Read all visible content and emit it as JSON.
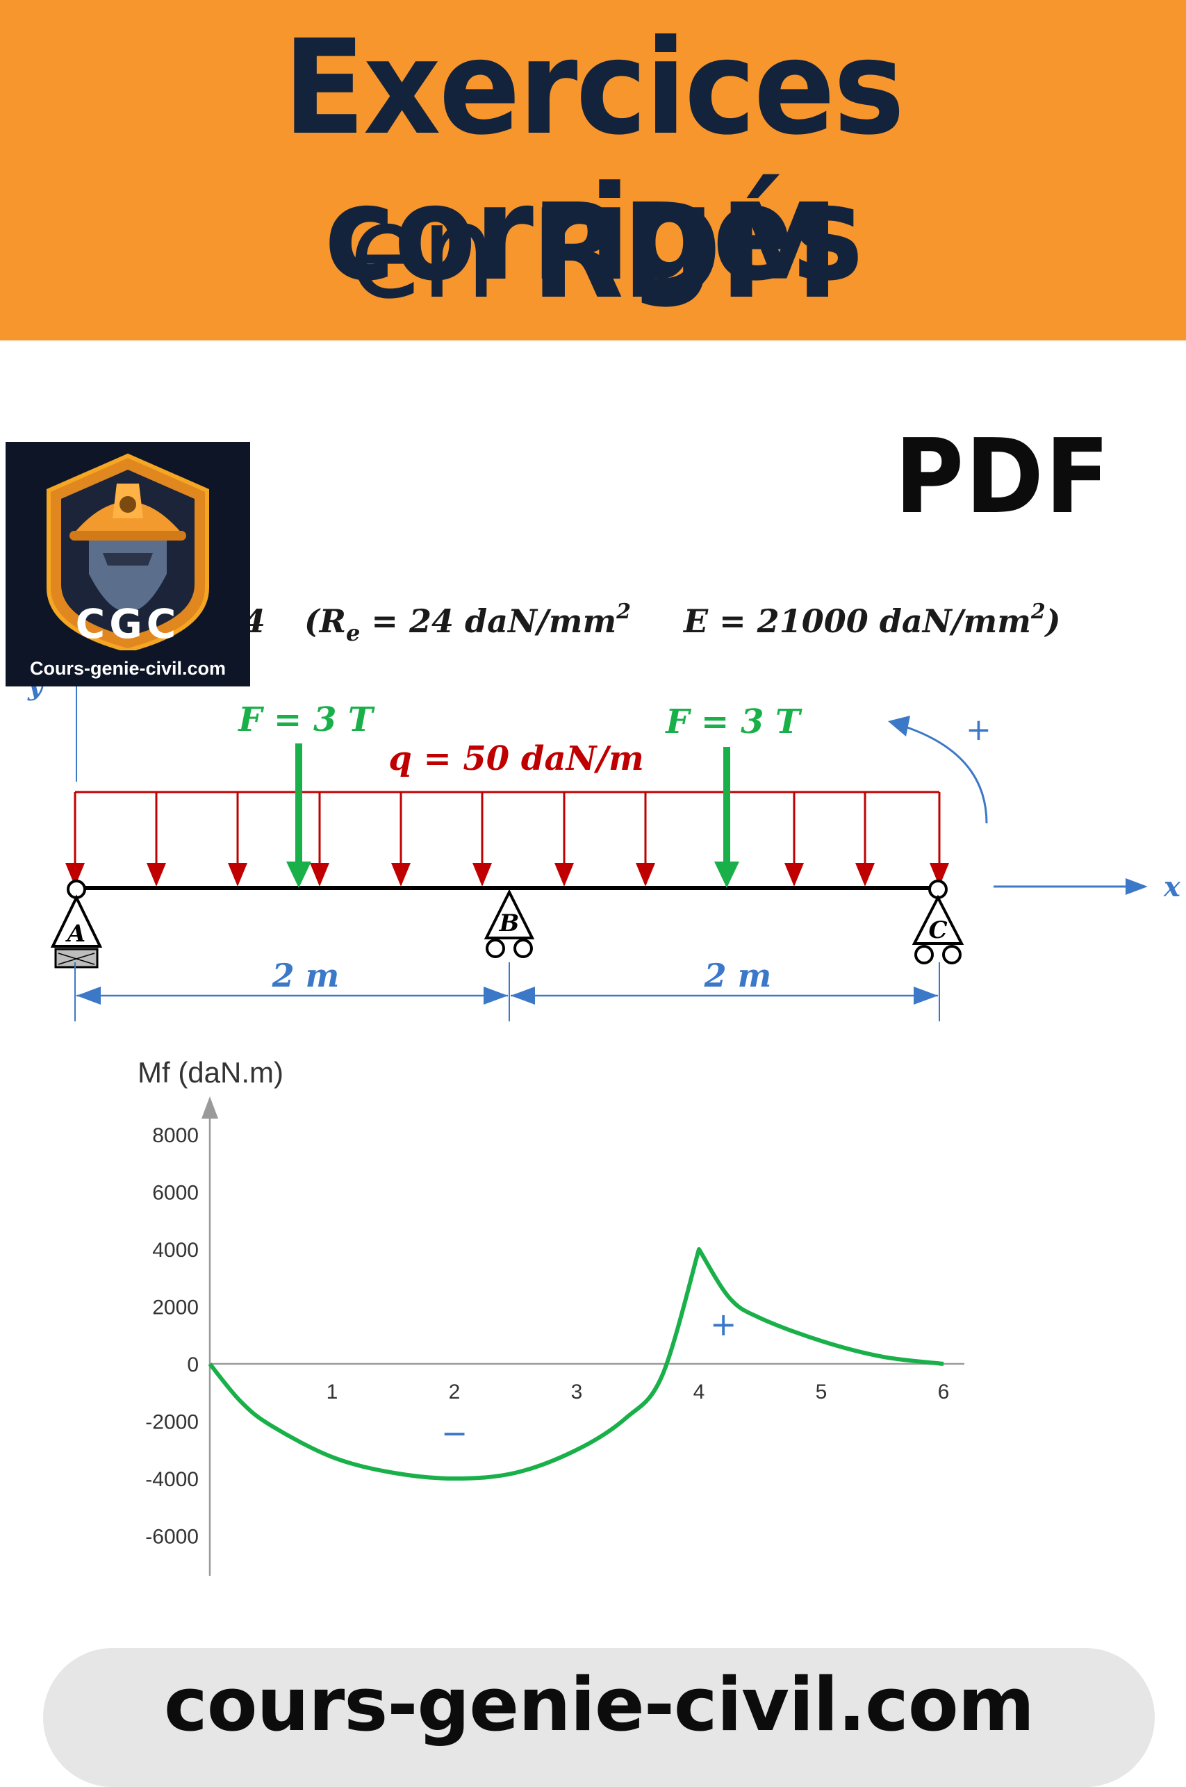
{
  "banner": {
    "line1": "Exercices corrigés",
    "line2_prefix": "en ",
    "line2_bold": "RDM",
    "color": "#f7962d"
  },
  "badge": {
    "pdf": "PDF"
  },
  "logo": {
    "initials": "CGC",
    "caption": "Cours-genie-civil.com",
    "icon": "engineer-helmet-icon"
  },
  "formula": {
    "left_fragment": "4",
    "re_text": "(R",
    "re_sub": "e",
    "re_value": " = 24 daN/mm",
    "re_exp": "2",
    "e_text": "E = 21000 daN/mm",
    "e_exp": "2",
    "close": ")"
  },
  "beam": {
    "force_left": "F = 3 T",
    "force_right": "F = 3 T",
    "load": "q = 50 daN/m",
    "support_a": "A",
    "support_b": "B",
    "support_c": "C",
    "span_left": "2 m",
    "span_right": "2 m",
    "axis_x": "x",
    "axis_y": "y",
    "moment_sign": "+"
  },
  "chart_data": {
    "type": "line",
    "ylabel": "Mf (daN.m)",
    "xlabel": "",
    "x_ticks": [
      1,
      2,
      3,
      4,
      5,
      6
    ],
    "y_ticks": [
      8000,
      6000,
      4000,
      2000,
      0,
      -2000,
      -4000,
      -6000
    ],
    "xlim": [
      0,
      6.2
    ],
    "ylim": [
      -7000,
      8000
    ],
    "series": [
      {
        "x": [
          0,
          0.25,
          0.5,
          1,
          1.5,
          2,
          2.5,
          3,
          3.4,
          3.7,
          4,
          4.25,
          4.5,
          5,
          5.5,
          6
        ],
        "y": [
          0,
          -1300,
          -2150,
          -3250,
          -3800,
          -4000,
          -3800,
          -3000,
          -1900,
          -400,
          4000,
          2300,
          1600,
          800,
          250,
          0
        ]
      }
    ],
    "annotations": [
      {
        "text": "−",
        "x": 2,
        "y": -2800
      },
      {
        "text": "+",
        "x": 4.2,
        "y": 1000
      }
    ],
    "line_color": "#19b04a",
    "grid": false
  },
  "footer": {
    "url": "cours-genie-civil.com"
  }
}
